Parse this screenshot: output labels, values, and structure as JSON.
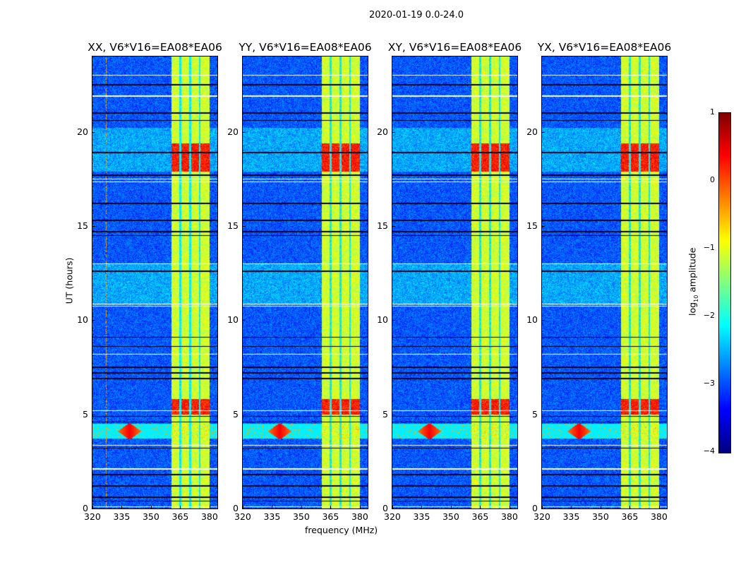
{
  "suptitle": "2020-01-19 0.0-24.0",
  "chart_data": {
    "type": "heatmap",
    "panels": [
      {
        "title": "XX, V6*V16=EA08*EA06"
      },
      {
        "title": "YY, V6*V16=EA08*EA06"
      },
      {
        "title": "XY, V6*V16=EA08*EA06"
      },
      {
        "title": "YX, V6*V16=EA08*EA06"
      }
    ],
    "xlabel": "frequency (MHz)",
    "ylabel": "UT (hours)",
    "xlim": [
      320,
      384
    ],
    "ylim": [
      0,
      24
    ],
    "xticks": [
      320,
      335,
      350,
      365,
      380
    ],
    "yticks": [
      0,
      5,
      10,
      15,
      20
    ],
    "colorbar": {
      "label": "log10 amplitude",
      "label_main": "log",
      "label_sub": "10",
      "label_rest": " amplitude",
      "range": [
        -4,
        1
      ],
      "ticks": [
        "1",
        "0",
        "−1",
        "−2",
        "−3",
        "−4"
      ],
      "colormap": "jet"
    },
    "features": {
      "background_level": -3.0,
      "band_MHz": [
        360.5,
        380
      ],
      "band_level": -1.0,
      "band_gaps_MHz": [
        365,
        370,
        375
      ],
      "strong_time_ranges_h": [
        [
          17.9,
          19.4
        ],
        [
          5.0,
          5.8
        ]
      ],
      "strong_level": 0.2,
      "rfi_time_range_h": [
        3.7,
        4.5
      ],
      "rfi_center_MHz": 339,
      "white_flag_rows_h": [
        23.0,
        21.9,
        17.5,
        17.35,
        13.0,
        10.85,
        10.75,
        8.2,
        5.2,
        3.35,
        2.1,
        0.1
      ],
      "black_flag_rows_h": [
        22.5,
        21.0,
        20.6,
        18.9,
        17.7,
        16.2,
        15.3,
        14.7,
        14.5,
        12.6,
        9.1,
        8.6,
        7.5,
        7.2,
        6.9,
        4.9,
        4.6,
        3.2,
        1.8,
        1.2,
        0.6,
        0.4
      ]
    }
  }
}
